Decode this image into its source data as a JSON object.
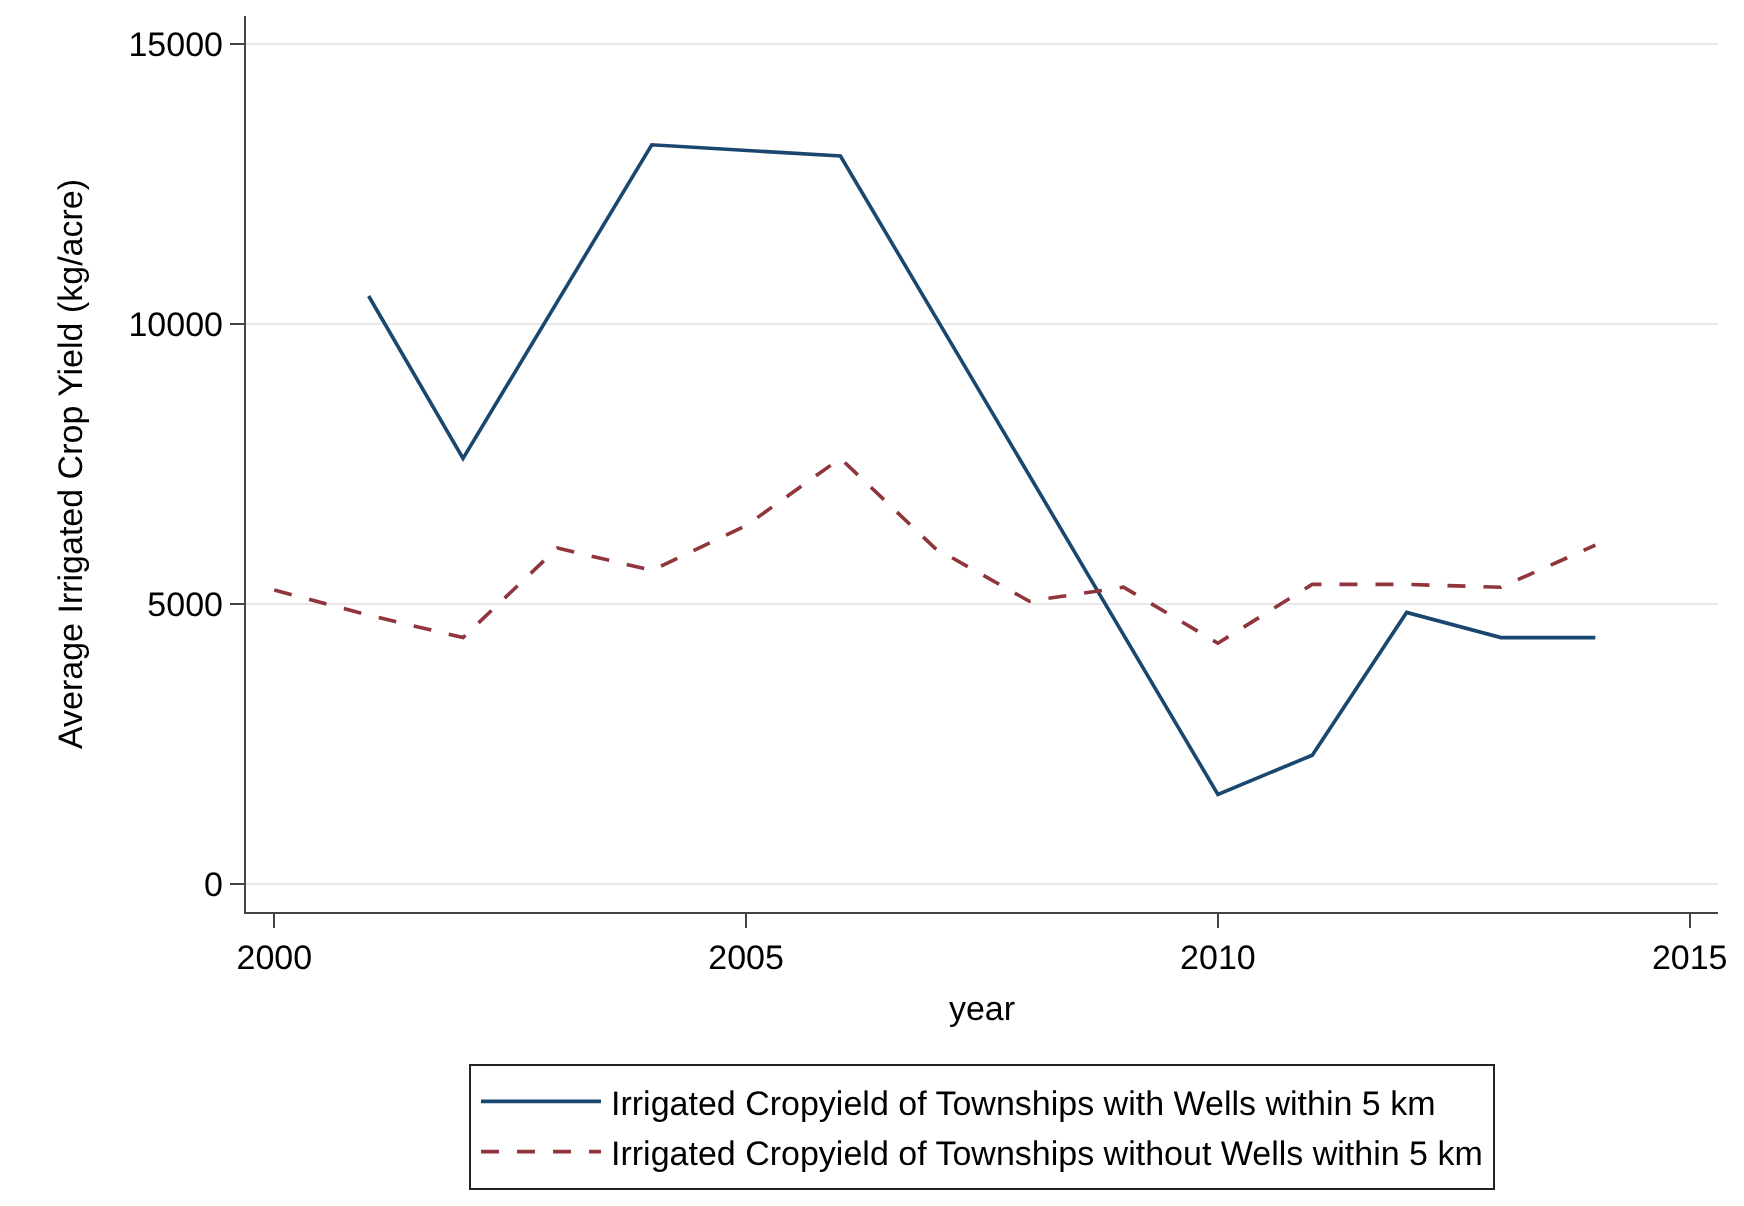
{
  "chart_data": {
    "type": "line",
    "xlabel": "year",
    "ylabel": "Average Irrigated Crop Yield (kg/acre)",
    "xlim": [
      1999.7,
      2015.3
    ],
    "xticks": [
      2000,
      2005,
      2010,
      2015
    ],
    "ylim": [
      -500,
      15500
    ],
    "yticks": [
      0,
      5000,
      10000,
      15000
    ],
    "grid": "y",
    "legend": "bottom",
    "series": [
      {
        "name": "Irrigated Cropyield of Townships with Wells within 5 km",
        "color": "#1a476f",
        "line_style": "solid",
        "x": [
          2001,
          2002,
          2004,
          2006,
          2010,
          2011,
          2012,
          2013,
          2014
        ],
        "values": [
          10500,
          7600,
          13200,
          13000,
          1600,
          2300,
          4850,
          4400,
          4400
        ]
      },
      {
        "name": "Irrigated Cropyield of Townships without Wells within 5 km",
        "color": "#90353b",
        "line_style": "dashed",
        "x": [
          2000,
          2001,
          2002,
          2003,
          2004,
          2005,
          2006,
          2007,
          2008,
          2009,
          2010,
          2011,
          2012,
          2013,
          2014
        ],
        "values": [
          5250,
          4800,
          4400,
          6000,
          5600,
          6400,
          7600,
          6000,
          5050,
          5300,
          4300,
          5350,
          5350,
          5300,
          6050
        ]
      }
    ]
  }
}
